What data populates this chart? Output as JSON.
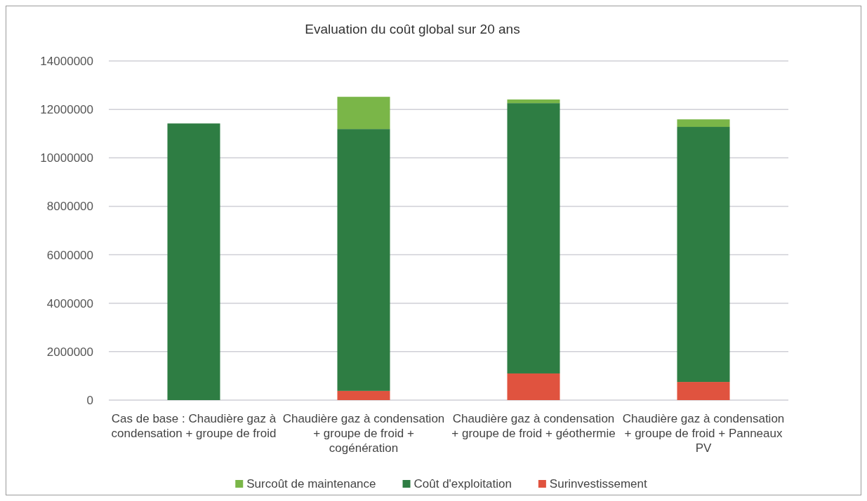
{
  "chart_data": {
    "type": "bar",
    "title": "Evaluation du coût global sur 20 ans",
    "stacked": true,
    "categories": [
      "Cas de base : Chaudière gaz à condensation + groupe de froid",
      "Chaudière gaz à condensation + groupe de froid + cogénération",
      "Chaudière gaz à condensation + groupe de froid + géothermie",
      "Chaudière gaz à condensation + groupe de froid + Panneaux PV"
    ],
    "series": [
      {
        "name": "Surinvestissement",
        "color": "#e0533f",
        "values": [
          0,
          380000,
          1100000,
          750000
        ]
      },
      {
        "name": "Coût d'exploitation",
        "color": "#2e7d43",
        "values": [
          11420000,
          10810000,
          11160000,
          10530000
        ]
      },
      {
        "name": "Surcoût de maintenance",
        "color": "#7ab648",
        "values": [
          0,
          1330000,
          150000,
          310000
        ]
      }
    ],
    "ylim": [
      0,
      14000000
    ],
    "yticks": [
      0,
      2000000,
      4000000,
      6000000,
      8000000,
      10000000,
      12000000,
      14000000
    ],
    "grid": "y",
    "legend": "bottom"
  }
}
